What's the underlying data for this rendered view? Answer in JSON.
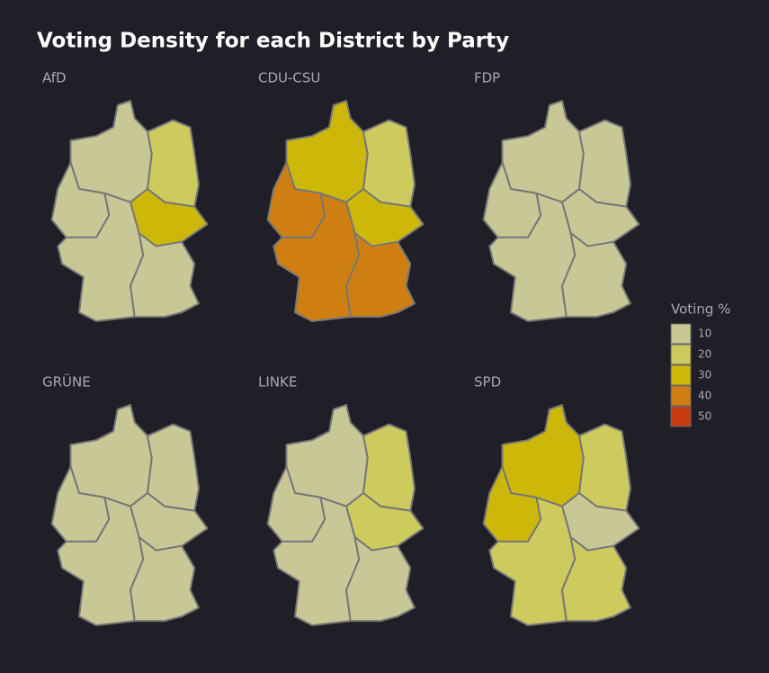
{
  "chart_data": {
    "type": "choropleth",
    "title": "Voting Density for each District by Party",
    "legend_title": "Voting %",
    "legend": [
      {
        "value": 10,
        "color": "#c8c896"
      },
      {
        "value": 20,
        "color": "#cdca5e"
      },
      {
        "value": 30,
        "color": "#cdb80a"
      },
      {
        "value": 40,
        "color": "#cf7f12"
      },
      {
        "value": 50,
        "color": "#c83a10"
      }
    ],
    "panels": [
      {
        "name": "AfD",
        "values": [
          8,
          20,
          8,
          26,
          10,
          12
        ]
      },
      {
        "name": "CDU-CSU",
        "values": [
          35,
          25,
          38,
          28,
          38,
          42
        ]
      },
      {
        "name": "FDP",
        "values": [
          10,
          8,
          10,
          8,
          11,
          10
        ]
      },
      {
        "name": "GRÜNE",
        "values": [
          12,
          6,
          12,
          6,
          14,
          13
        ]
      },
      {
        "name": "LINKE",
        "values": [
          6,
          16,
          6,
          16,
          5,
          4
        ]
      },
      {
        "name": "SPD",
        "values": [
          30,
          16,
          32,
          12,
          20,
          16
        ]
      }
    ]
  }
}
